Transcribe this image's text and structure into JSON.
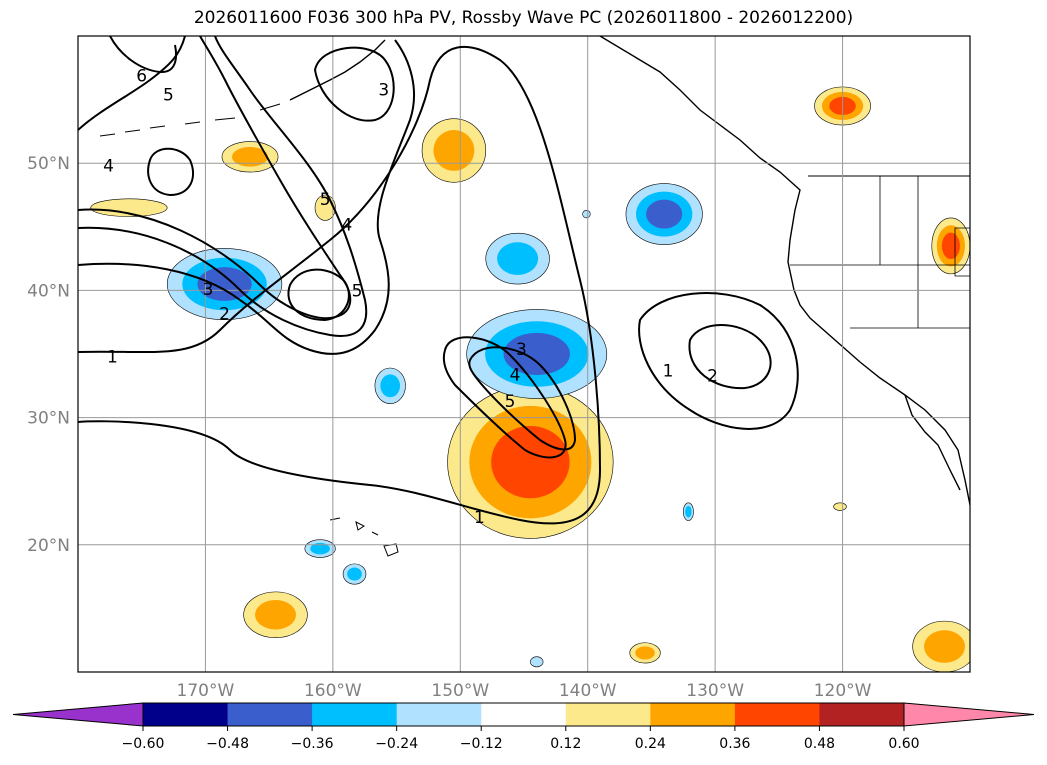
{
  "title": "2026011600 F036 300 hPa PV, Rossby Wave PC (2026011800 - 2026012200)",
  "chart_data": {
    "type": "contour-map",
    "title": "2026011600 F036 300 hPa PV, Rossby Wave PC (2026011800 - 2026012200)",
    "projection": "PlateCarree",
    "lon_range": [
      -180,
      -110
    ],
    "lat_range": [
      10,
      60
    ],
    "lat_ticks": [
      20,
      30,
      40,
      50
    ],
    "lat_tick_labels": [
      "20°N",
      "30°N",
      "40°N",
      "50°N"
    ],
    "lon_ticks": [
      -170,
      -160,
      -150,
      -140,
      -130,
      -120
    ],
    "lon_tick_labels": [
      "170°W",
      "160°W",
      "150°W",
      "140°W",
      "130°W",
      "120°W"
    ],
    "gridlines": true,
    "pv_contour_labels": [
      {
        "value": "6",
        "lon": -175,
        "lat": 56.9
      },
      {
        "value": "5",
        "lon": -172.9,
        "lat": 55.4
      },
      {
        "value": "4",
        "lon": -177.6,
        "lat": 49.8
      },
      {
        "value": "3",
        "lon": -156,
        "lat": 55.8
      },
      {
        "value": "5",
        "lon": -160.6,
        "lat": 47.2
      },
      {
        "value": "4",
        "lon": -158.9,
        "lat": 45.2
      },
      {
        "value": "5",
        "lon": -158.1,
        "lat": 40.0
      },
      {
        "value": "3",
        "lon": -169.8,
        "lat": 40.1
      },
      {
        "value": "2",
        "lon": -168.5,
        "lat": 38.2
      },
      {
        "value": "1",
        "lon": -177.3,
        "lat": 34.8
      },
      {
        "value": "3",
        "lon": -145.2,
        "lat": 35.4
      },
      {
        "value": "4",
        "lon": -145.7,
        "lat": 33.4
      },
      {
        "value": "5",
        "lon": -146.1,
        "lat": 31.3
      },
      {
        "value": "1",
        "lon": -148.5,
        "lat": 22.2
      },
      {
        "value": "1",
        "lon": -133.7,
        "lat": 33.7
      },
      {
        "value": "2",
        "lon": -130.2,
        "lat": 33.3
      }
    ],
    "shading": [
      {
        "lon": -144.5,
        "lat": 26.5,
        "rx": 6.5,
        "ry": 6.0,
        "value": 0.42
      },
      {
        "lon": -144.0,
        "lat": 35.0,
        "rx": 5.5,
        "ry": 3.5,
        "value": -0.42
      },
      {
        "lon": -168.5,
        "lat": 40.5,
        "rx": 4.5,
        "ry": 2.8,
        "value": -0.38
      },
      {
        "lon": -134.0,
        "lat": 46.0,
        "rx": 3.0,
        "ry": 2.4,
        "value": -0.38
      },
      {
        "lon": -145.5,
        "lat": 42.5,
        "rx": 2.5,
        "ry": 2.0,
        "value": -0.3
      },
      {
        "lon": -150.5,
        "lat": 51.0,
        "rx": 2.5,
        "ry": 2.5,
        "value": 0.34
      },
      {
        "lon": -166.5,
        "lat": 50.5,
        "rx": 2.2,
        "ry": 1.2,
        "value": 0.26
      },
      {
        "lon": -176.0,
        "lat": 46.5,
        "rx": 3.0,
        "ry": 0.7,
        "value": 0.24
      },
      {
        "lon": -160.6,
        "lat": 46.5,
        "rx": 0.8,
        "ry": 1.0,
        "value": 0.24
      },
      {
        "lon": -120.0,
        "lat": 54.5,
        "rx": 2.2,
        "ry": 1.5,
        "value": 0.4
      },
      {
        "lon": -111.5,
        "lat": 43.5,
        "rx": 1.5,
        "ry": 2.2,
        "value": 0.4
      },
      {
        "lon": -164.5,
        "lat": 14.5,
        "rx": 2.5,
        "ry": 1.8,
        "value": 0.32
      },
      {
        "lon": -112.0,
        "lat": 12.0,
        "rx": 2.5,
        "ry": 2.0,
        "value": 0.3
      },
      {
        "lon": -135.5,
        "lat": 11.5,
        "rx": 1.2,
        "ry": 0.8,
        "value": 0.26
      },
      {
        "lon": -155.5,
        "lat": 32.5,
        "rx": 1.2,
        "ry": 1.4,
        "value": -0.28
      },
      {
        "lon": -161.0,
        "lat": 19.7,
        "rx": 1.2,
        "ry": 0.7,
        "value": -0.28
      },
      {
        "lon": -158.3,
        "lat": 17.7,
        "rx": 0.9,
        "ry": 0.8,
        "value": -0.26
      },
      {
        "lon": -132.1,
        "lat": 22.6,
        "rx": 0.4,
        "ry": 0.7,
        "value": -0.26
      },
      {
        "lon": -120.2,
        "lat": 23.0,
        "rx": 0.5,
        "ry": 0.3,
        "value": 0.2
      },
      {
        "lon": -140.1,
        "lat": 46.0,
        "rx": 0.3,
        "ry": 0.3,
        "value": -0.2
      },
      {
        "lon": -144.0,
        "lat": 10.8,
        "rx": 0.5,
        "ry": 0.4,
        "value": -0.2
      }
    ],
    "colorbar": {
      "levels": [
        -0.6,
        -0.48,
        -0.36,
        -0.24,
        -0.12,
        0.12,
        0.24,
        0.36,
        0.48,
        0.6
      ],
      "tick_labels": [
        "−0.60",
        "−0.48",
        "−0.36",
        "−0.24",
        "−0.12",
        "0.12",
        "0.24",
        "0.36",
        "0.48",
        "0.60"
      ],
      "colors": [
        "#9932cc",
        "#00008b",
        "#3a5fcd",
        "#00bfff",
        "#b0e2ff",
        "#ffffff",
        "#fce98c",
        "#ffa500",
        "#ff4500",
        "#b22222",
        "#ff88aa"
      ],
      "extend": "both"
    }
  }
}
